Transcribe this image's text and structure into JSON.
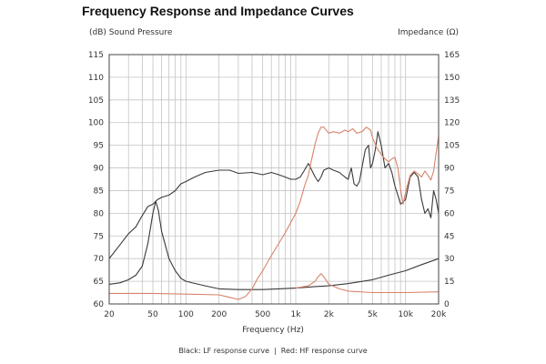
{
  "chart_data": {
    "type": "line",
    "title": "Frequency Response and Impedance Curves",
    "xlabel": "Frequency (Hz)",
    "ylabel_left": "(dB) Sound Pressure",
    "ylabel_right": "Impedance (Ω)",
    "x_scale": "log",
    "xlim": [
      20,
      20000
    ],
    "ylim_left": [
      60,
      115
    ],
    "ylim_right": [
      0,
      165
    ],
    "grid": true,
    "x_ticks": [
      {
        "value": 20,
        "label": "20"
      },
      {
        "value": 50,
        "label": "50"
      },
      {
        "value": 100,
        "label": "100"
      },
      {
        "value": 200,
        "label": "200"
      },
      {
        "value": 500,
        "label": "500"
      },
      {
        "value": 1000,
        "label": "1k"
      },
      {
        "value": 2000,
        "label": "2k"
      },
      {
        "value": 5000,
        "label": "5k"
      },
      {
        "value": 10000,
        "label": "10k"
      },
      {
        "value": 20000,
        "label": "20k"
      }
    ],
    "y_left_ticks": [
      60,
      65,
      70,
      75,
      80,
      85,
      90,
      95,
      100,
      105,
      110,
      115
    ],
    "y_right_ticks": [
      0,
      15,
      30,
      45,
      60,
      75,
      90,
      105,
      120,
      135,
      150,
      165
    ],
    "caption": {
      "black": "Black: LF response curve",
      "separator": "|",
      "red": "Red: HF response curve"
    },
    "series": [
      {
        "color": "#3a3a3a",
        "axis": "left",
        "points": [
          [
            20,
            70
          ],
          [
            25,
            73
          ],
          [
            30,
            75.5
          ],
          [
            35,
            77
          ],
          [
            40,
            79.5
          ],
          [
            45,
            81.5
          ],
          [
            50,
            82
          ],
          [
            55,
            83
          ],
          [
            60,
            83.5
          ],
          [
            70,
            84
          ],
          [
            80,
            85
          ],
          [
            90,
            86.5
          ],
          [
            100,
            87
          ],
          [
            120,
            88
          ],
          [
            150,
            89
          ],
          [
            200,
            89.5
          ],
          [
            250,
            89.5
          ],
          [
            300,
            88.8
          ],
          [
            400,
            89
          ],
          [
            500,
            88.5
          ],
          [
            600,
            89
          ],
          [
            700,
            88.5
          ],
          [
            800,
            88
          ],
          [
            900,
            87.5
          ],
          [
            1000,
            87.5
          ],
          [
            1100,
            88
          ],
          [
            1200,
            89.5
          ],
          [
            1300,
            91
          ],
          [
            1400,
            89.5
          ],
          [
            1500,
            88
          ],
          [
            1600,
            87
          ],
          [
            1700,
            88
          ],
          [
            1800,
            89.5
          ],
          [
            2000,
            90
          ],
          [
            2200,
            89.5
          ],
          [
            2500,
            89
          ],
          [
            2800,
            88
          ],
          [
            3000,
            87.5
          ],
          [
            3200,
            90
          ],
          [
            3400,
            86.5
          ],
          [
            3600,
            86
          ],
          [
            3800,
            87
          ],
          [
            4000,
            90
          ],
          [
            4300,
            94
          ],
          [
            4600,
            95
          ],
          [
            4800,
            90
          ],
          [
            5000,
            91
          ],
          [
            5300,
            94
          ],
          [
            5600,
            98
          ],
          [
            6000,
            95
          ],
          [
            6500,
            90
          ],
          [
            7000,
            91
          ],
          [
            7500,
            89
          ],
          [
            8000,
            86
          ],
          [
            8500,
            84
          ],
          [
            9000,
            82
          ],
          [
            10000,
            83
          ],
          [
            11000,
            88
          ],
          [
            12000,
            89
          ],
          [
            13000,
            88
          ],
          [
            14000,
            83
          ],
          [
            15000,
            80
          ],
          [
            16000,
            81
          ],
          [
            17000,
            79
          ],
          [
            18000,
            85
          ],
          [
            19000,
            83
          ],
          [
            20000,
            80
          ]
        ]
      },
      {
        "color": "#3a3a3a",
        "axis": "right",
        "points": [
          [
            20,
            13
          ],
          [
            25,
            14
          ],
          [
            30,
            16
          ],
          [
            35,
            19
          ],
          [
            40,
            25
          ],
          [
            45,
            40
          ],
          [
            50,
            60
          ],
          [
            53,
            68
          ],
          [
            56,
            62
          ],
          [
            60,
            48
          ],
          [
            70,
            30
          ],
          [
            80,
            22
          ],
          [
            90,
            17
          ],
          [
            100,
            15
          ],
          [
            150,
            12
          ],
          [
            200,
            10
          ],
          [
            300,
            9.5
          ],
          [
            500,
            9.5
          ],
          [
            700,
            10
          ],
          [
            1000,
            10.5
          ],
          [
            1500,
            11.5
          ],
          [
            2000,
            12
          ],
          [
            3000,
            13.5
          ],
          [
            5000,
            16
          ],
          [
            7000,
            19
          ],
          [
            10000,
            22
          ],
          [
            14000,
            26
          ],
          [
            20000,
            30
          ]
        ]
      },
      {
        "color": "#d9826a",
        "axis": "right",
        "points": [
          [
            20,
            7
          ],
          [
            50,
            7
          ],
          [
            100,
            6.5
          ],
          [
            200,
            6
          ],
          [
            300,
            3
          ],
          [
            350,
            5
          ],
          [
            400,
            10
          ],
          [
            450,
            17
          ],
          [
            500,
            22
          ],
          [
            600,
            32
          ],
          [
            700,
            40
          ],
          [
            800,
            47
          ],
          [
            1000,
            60
          ],
          [
            1100,
            68
          ],
          [
            1200,
            78
          ],
          [
            1300,
            85
          ],
          [
            1400,
            96
          ],
          [
            1500,
            106
          ],
          [
            1600,
            113
          ],
          [
            1700,
            117
          ],
          [
            1800,
            117
          ],
          [
            2000,
            113
          ],
          [
            2200,
            114
          ],
          [
            2500,
            113
          ],
          [
            2800,
            115
          ],
          [
            3000,
            114
          ],
          [
            3300,
            116
          ],
          [
            3600,
            113
          ],
          [
            4000,
            114
          ],
          [
            4400,
            117
          ],
          [
            4800,
            115
          ],
          [
            5000,
            110
          ],
          [
            5500,
            103
          ],
          [
            6000,
            99
          ],
          [
            6500,
            96
          ],
          [
            7000,
            94
          ],
          [
            7500,
            96
          ],
          [
            8000,
            97
          ],
          [
            8500,
            90
          ],
          [
            9000,
            76
          ],
          [
            9500,
            66
          ],
          [
            10000,
            74
          ],
          [
            11000,
            85
          ],
          [
            12000,
            88
          ],
          [
            13000,
            86
          ],
          [
            14000,
            84
          ],
          [
            15000,
            88
          ],
          [
            16000,
            85
          ],
          [
            17000,
            82
          ],
          [
            18000,
            88
          ],
          [
            19000,
            100
          ],
          [
            20000,
            111
          ]
        ]
      },
      {
        "color": "#d9826a",
        "axis": "right",
        "points": [
          [
            1000,
            10.5
          ],
          [
            1300,
            12
          ],
          [
            1500,
            15
          ],
          [
            1600,
            18
          ],
          [
            1700,
            20
          ],
          [
            1800,
            18
          ],
          [
            2000,
            13
          ],
          [
            2500,
            10
          ],
          [
            3000,
            8.5
          ],
          [
            5000,
            7.5
          ],
          [
            10000,
            7.5
          ],
          [
            20000,
            8
          ]
        ]
      }
    ]
  }
}
